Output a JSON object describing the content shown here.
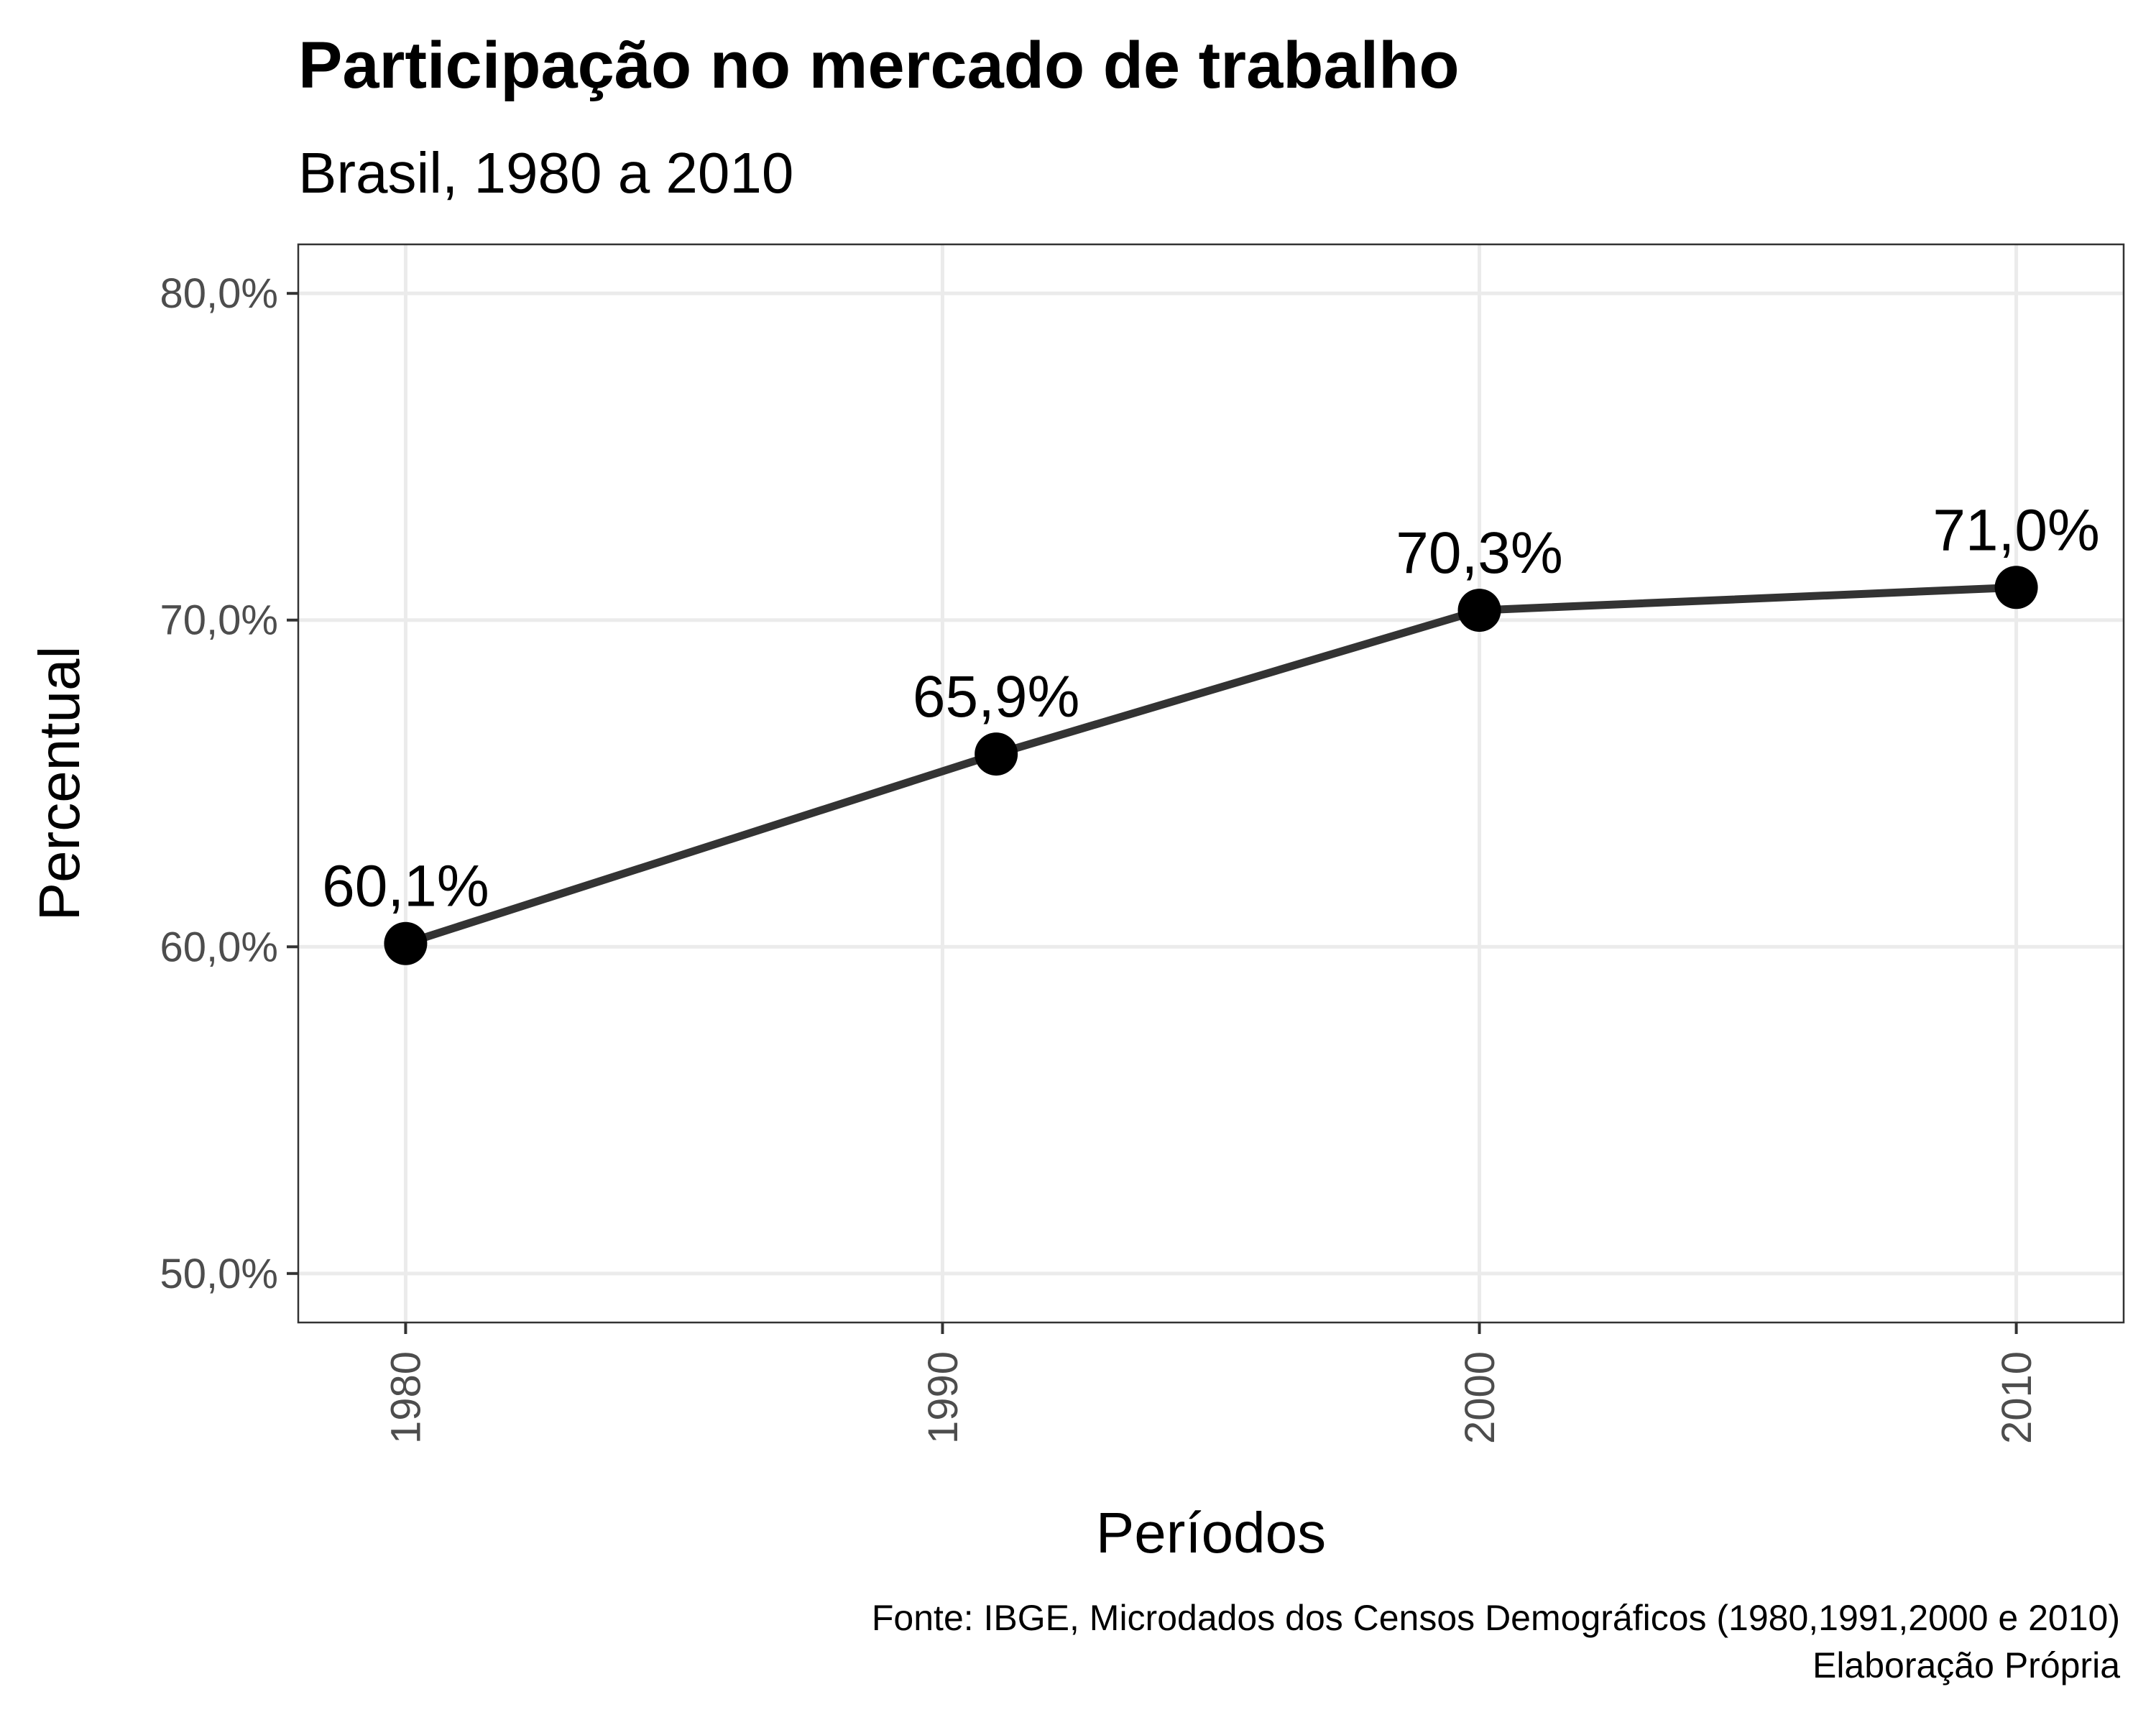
{
  "chart_data": {
    "type": "line",
    "title": "Participação no mercado de trabalho",
    "subtitle": "Brasil, 1980 a 2010",
    "xlabel": "Períodos",
    "ylabel": "Percentual",
    "x": [
      1980,
      1991,
      2000,
      2010
    ],
    "series": [
      {
        "values": [
          60.1,
          65.9,
          70.3,
          71.0
        ]
      }
    ],
    "data_labels": [
      "60,1%",
      "65,9%",
      "70,3%",
      "71,0%"
    ],
    "xticks": [
      1980,
      1990,
      2000,
      2010
    ],
    "xtick_labels": [
      "1980",
      "1990",
      "2000",
      "2010"
    ],
    "yticks": [
      50,
      60,
      70,
      80
    ],
    "ytick_labels": [
      "50,0%",
      "60,0%",
      "70,0%",
      "80,0%"
    ],
    "xlim": [
      1978,
      2012
    ],
    "ylim": [
      48.5,
      81.5
    ],
    "grid": true,
    "legend": "none",
    "caption": [
      "Fonte: IBGE, Microdados dos Censos Demográficos (1980,1991,2000 e 2010)",
      "Elaboração Própria"
    ],
    "colors": {
      "line": "#333333",
      "point": "#000000",
      "grid": "#ebebeb",
      "panel_border": "#333333"
    }
  }
}
